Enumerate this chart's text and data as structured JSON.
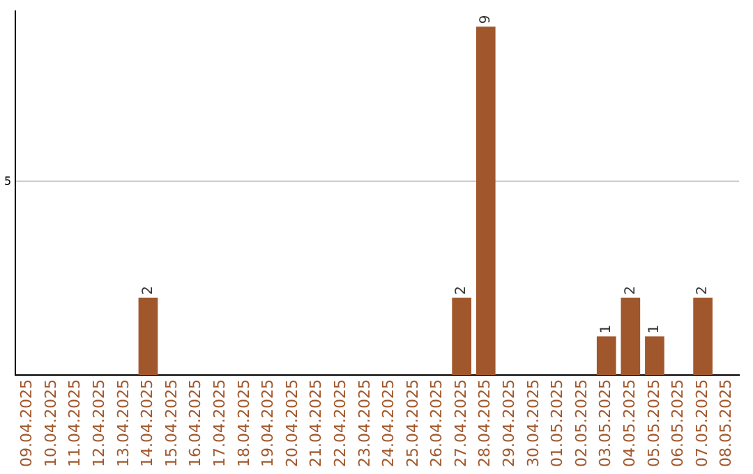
{
  "chart_data": {
    "type": "bar",
    "categories": [
      "09.04.2025",
      "10.04.2025",
      "11.04.2025",
      "12.04.2025",
      "13.04.2025",
      "14.04.2025",
      "15.04.2025",
      "16.04.2025",
      "17.04.2025",
      "18.04.2025",
      "19.04.2025",
      "20.04.2025",
      "21.04.2025",
      "22.04.2025",
      "23.04.2025",
      "24.04.2025",
      "25.04.2025",
      "26.04.2025",
      "27.04.2025",
      "28.04.2025",
      "29.04.2025",
      "30.04.2025",
      "01.05.2025",
      "02.05.2025",
      "03.05.2025",
      "04.05.2025",
      "05.05.2025",
      "06.05.2025",
      "07.05.2025",
      "08.05.2025"
    ],
    "values": [
      0,
      0,
      0,
      0,
      0,
      2,
      0,
      0,
      0,
      0,
      0,
      0,
      0,
      0,
      0,
      0,
      0,
      0,
      2,
      9,
      0,
      0,
      0,
      0,
      1,
      2,
      1,
      0,
      2,
      0
    ],
    "value_labels": [
      null,
      null,
      null,
      null,
      null,
      "2",
      null,
      null,
      null,
      null,
      null,
      null,
      null,
      null,
      null,
      null,
      null,
      null,
      "2",
      "9",
      null,
      null,
      null,
      null,
      "1",
      "2",
      "1",
      null,
      "2",
      null
    ],
    "color": "#a0572c",
    "ylim": [
      0,
      9.4
    ],
    "yticks": [
      5
    ],
    "grid": "y",
    "legend": false
  }
}
